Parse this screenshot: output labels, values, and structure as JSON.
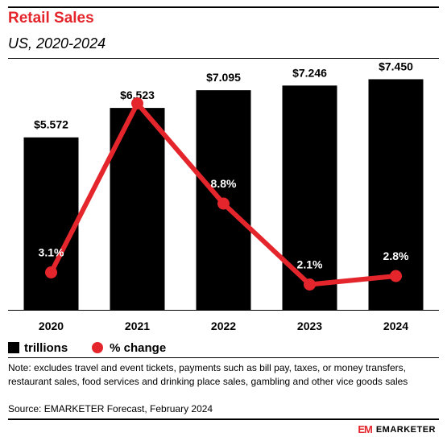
{
  "header": {
    "title": "Retail Sales",
    "subtitle": "US, 2020-2024"
  },
  "chart_data": {
    "type": "bar",
    "categories": [
      "2020",
      "2021",
      "2022",
      "2023",
      "2024"
    ],
    "series": [
      {
        "name": "trillions",
        "type": "bar",
        "color": "#000000",
        "values": [
          5.572,
          6.523,
          7.095,
          7.246,
          7.45
        ],
        "labels": [
          "$5.572",
          "$6.523",
          "$7.095",
          "$7.246",
          "$7.450"
        ]
      },
      {
        "name": "% change",
        "type": "line",
        "color": "#e4262c",
        "values": [
          3.1,
          17.1,
          8.8,
          2.1,
          2.8
        ],
        "labels": [
          "3.1%",
          "17.1%",
          "8.8%",
          "2.1%",
          "2.8%"
        ]
      }
    ],
    "ylim": [
      0,
      7.8
    ],
    "y2lim": [
      0,
      20
    ],
    "legend_placement": "bottom-left",
    "grid": false
  },
  "legend": {
    "bar_label": "trillions",
    "line_label": "% change"
  },
  "footer": {
    "note": "Note: excludes travel and event tickets, payments such as bill pay, taxes, or money transfers, restaurant sales, food services and drinking place sales, gambling and other vice goods sales",
    "source": "Source: EMARKETER Forecast, February 2024",
    "logo_mark": "EM",
    "logo_text": "EMARKETER"
  }
}
